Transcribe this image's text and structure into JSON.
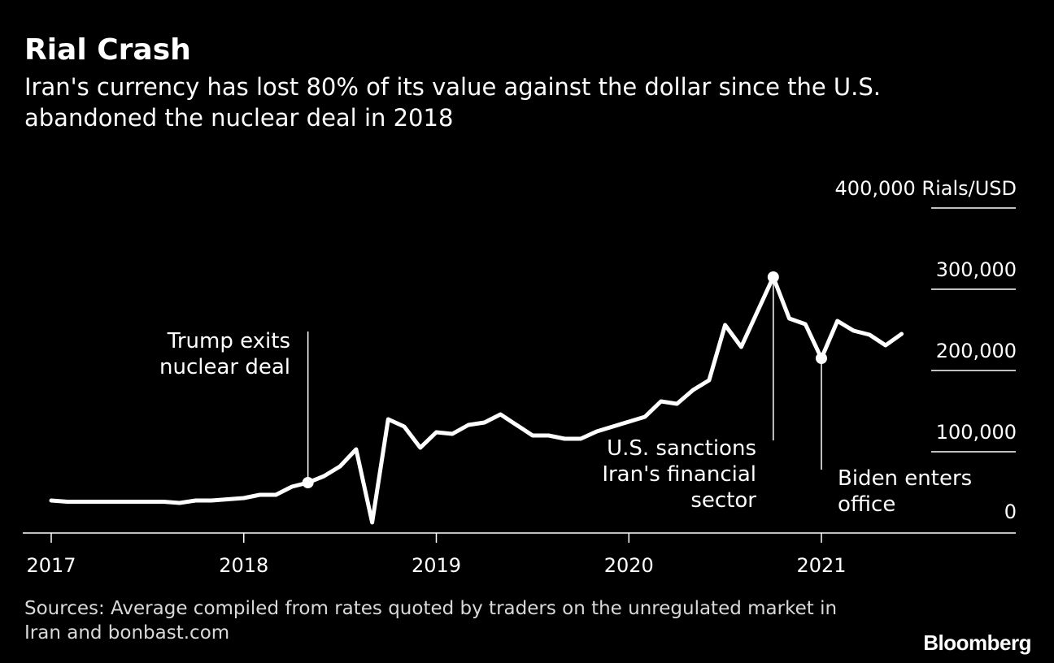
{
  "header": {
    "title": "Rial Crash",
    "subtitle": "Iran's currency has lost 80% of its value against the dollar since the U.S. abandoned the nuclear deal in 2018"
  },
  "footer": {
    "source": "Sources: Average compiled from rates quoted by traders on the unregulated market in Iran and bonbast.com",
    "logo": "Bloomberg"
  },
  "colors": {
    "background": "#000000",
    "line": "#ffffff",
    "grid": "#ffffff",
    "text": "#ffffff"
  },
  "chart_data": {
    "type": "line",
    "title": "Rial Crash",
    "subtitle": "Iran's currency has lost 80% of its value against the dollar since the U.S. abandoned the nuclear deal in 2018",
    "ylabel": "Rials/USD",
    "y_unit_label": "400,000 Rials/USD",
    "ylim": [
      0,
      400000
    ],
    "xlim": [
      "2016-12",
      "2021-12"
    ],
    "x_ticks": [
      "2017",
      "2018",
      "2019",
      "2020",
      "2021"
    ],
    "y_ticks": [
      {
        "value": 0,
        "label": "0"
      },
      {
        "value": 100000,
        "label": "100,000"
      },
      {
        "value": 200000,
        "label": "200,000"
      },
      {
        "value": 300000,
        "label": "300,000"
      },
      {
        "value": 400000,
        "label": "400,000 Rials/USD"
      }
    ],
    "grid": "horizontal",
    "series": [
      {
        "x": [
          "2017-01",
          "2017-02",
          "2017-03",
          "2017-04",
          "2017-05",
          "2017-06",
          "2017-07",
          "2017-08",
          "2017-09",
          "2017-10",
          "2017-11",
          "2017-12",
          "2018-01",
          "2018-02",
          "2018-03",
          "2018-04",
          "2018-05",
          "2018-06",
          "2018-07",
          "2018-08",
          "2018-09",
          "2018-10",
          "2018-11",
          "2018-12",
          "2019-01",
          "2019-02",
          "2019-03",
          "2019-04",
          "2019-05",
          "2019-06",
          "2019-07",
          "2019-08",
          "2019-09",
          "2019-10",
          "2019-11",
          "2019-12",
          "2020-01",
          "2020-02",
          "2020-03",
          "2020-04",
          "2020-05",
          "2020-06",
          "2020-07",
          "2020-08",
          "2020-09",
          "2020-10",
          "2020-11",
          "2020-12",
          "2021-01",
          "2021-02",
          "2021-03",
          "2021-04",
          "2021-05",
          "2021-06"
        ],
        "values": [
          40000,
          38500,
          38500,
          38500,
          38500,
          38500,
          38500,
          38500,
          37000,
          40000,
          40000,
          41500,
          43000,
          47000,
          47000,
          57000,
          62000,
          70000,
          82000,
          103000,
          13000,
          140000,
          131000,
          105000,
          124000,
          122000,
          133000,
          136000,
          146000,
          133000,
          120000,
          120000,
          116000,
          116000,
          125000,
          131000,
          137000,
          143000,
          162000,
          159000,
          176000,
          188000,
          256000,
          229000,
          272000,
          315000,
          264000,
          257000,
          215000,
          261000,
          249000,
          244000,
          231000,
          245000
        ]
      }
    ],
    "annotations": [
      {
        "date": "2018-05",
        "value": 62000,
        "marker": true,
        "label": "Trump exits nuclear deal",
        "lines": [
          "Trump exits",
          "nuclear deal"
        ]
      },
      {
        "date": "2020-10",
        "value": 315000,
        "marker": true,
        "label": "U.S. sanctions Iran's financial sector",
        "lines": [
          "U.S. sanctions",
          "Iran's financial",
          "sector"
        ]
      },
      {
        "date": "2021-01",
        "value": 215000,
        "marker": true,
        "label": "Biden enters office",
        "lines": [
          "Biden enters",
          "office"
        ]
      }
    ]
  }
}
